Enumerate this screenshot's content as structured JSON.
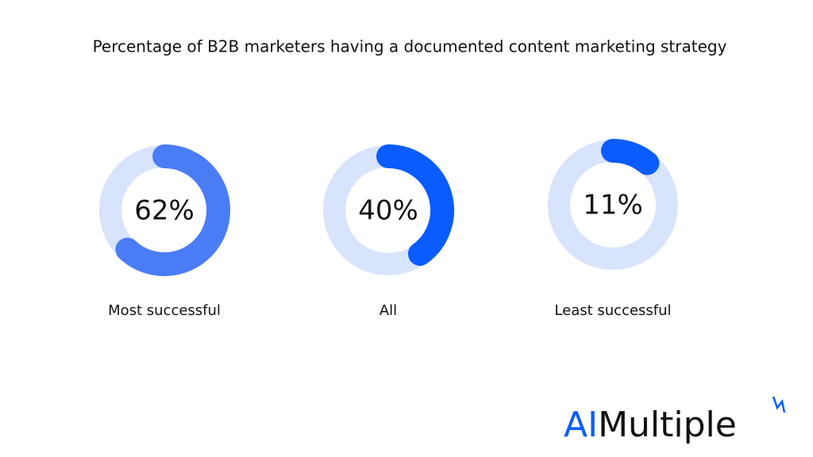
{
  "chart_data": {
    "type": "donut",
    "title": "Percentage of B2B marketers having a documented content marketing strategy",
    "categories": [
      "Most successful",
      "All",
      "Least successful"
    ],
    "values": [
      62,
      40,
      11
    ],
    "value_labels": [
      "62%",
      "40%",
      "11%"
    ],
    "colors": [
      "#4a7cf6",
      "#0a5cff",
      "#0a5cff"
    ],
    "track_color": "#d8e3fc"
  },
  "logo": {
    "prefix": "AI",
    "suffix": "Multiple"
  }
}
